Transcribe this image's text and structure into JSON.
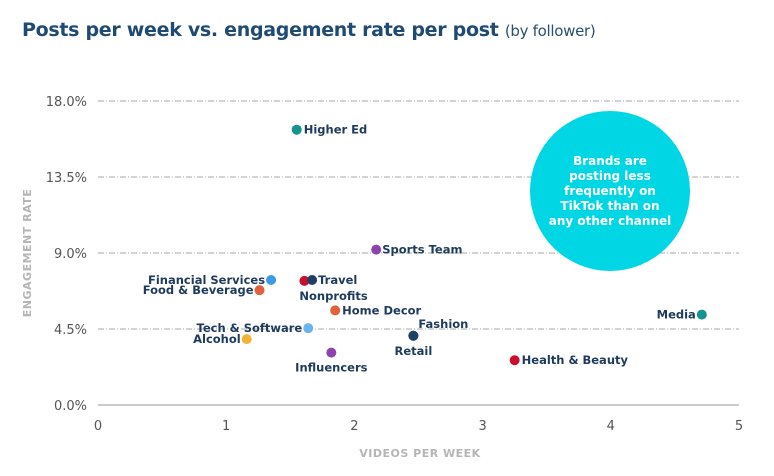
{
  "chart_data": {
    "type": "scatter",
    "title": "Posts per week vs. engagement rate per post",
    "subtitle": "(by follower)",
    "xlabel": "VIDEOS PER WEEK",
    "ylabel": "ENGAGEMENT RATE",
    "xlim": [
      0,
      5
    ],
    "ylim": [
      0,
      18
    ],
    "x_ticks": [
      "0",
      "1",
      "2",
      "3",
      "4",
      "5"
    ],
    "y_ticks": [
      "0.0%",
      "4.5%",
      "9.0%",
      "13.5%",
      "18.0%"
    ],
    "grid": "horizontal dashed",
    "annotation": "Brands are posting less frequently on TikTok than on any other channel",
    "points": [
      {
        "label": "Higher Ed",
        "x": 1.55,
        "y": 16.3,
        "color": "#13948f"
      },
      {
        "label": "Sports Team",
        "x": 2.17,
        "y": 9.2,
        "color": "#8e44ad"
      },
      {
        "label": "Financial Services",
        "x": 1.35,
        "y": 7.4,
        "color": "#3d9be9"
      },
      {
        "label": "Nonprofits",
        "x": 1.61,
        "y": 7.35,
        "color": "#c8102e"
      },
      {
        "label": "Travel",
        "x": 1.67,
        "y": 7.4,
        "color": "#1f3f66"
      },
      {
        "label": "Food & Beverage",
        "x": 1.26,
        "y": 6.8,
        "color": "#e0623d"
      },
      {
        "label": "Home Decor",
        "x": 1.85,
        "y": 5.6,
        "color": "#e0623d"
      },
      {
        "label": "Tech & Software",
        "x": 1.64,
        "y": 4.55,
        "color": "#6ab4f0"
      },
      {
        "label": "Alcohol",
        "x": 1.16,
        "y": 3.9,
        "color": "#f5b335"
      },
      {
        "label": "Fashion",
        "x": 2.46,
        "y": 4.1,
        "color": "#1f3f66"
      },
      {
        "label": "Retail",
        "x": 2.46,
        "y": 4.1,
        "color": "#1f3f66"
      },
      {
        "label": "Influencers",
        "x": 1.82,
        "y": 3.1,
        "color": "#8e44ad"
      },
      {
        "label": "Health & Beauty",
        "x": 3.25,
        "y": 2.65,
        "color": "#c8102e"
      },
      {
        "label": "Media",
        "x": 4.71,
        "y": 5.35,
        "color": "#13948f"
      }
    ]
  }
}
